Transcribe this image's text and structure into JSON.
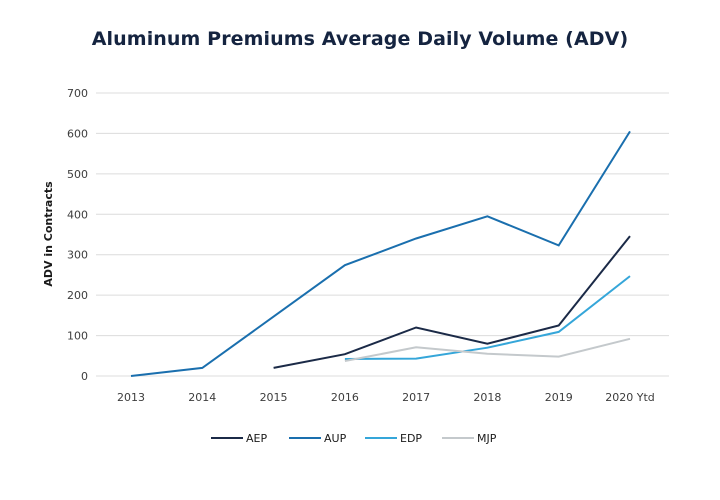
{
  "chart_data": {
    "type": "line",
    "title": "Aluminum Premiums Average Daily Volume (ADV)",
    "xlabel": "",
    "ylabel": "ADV in Contracts",
    "categories": [
      "2013",
      "2014",
      "2015",
      "2016",
      "2017",
      "2018",
      "2019",
      "2020 Ytd"
    ],
    "ylim": [
      0,
      700
    ],
    "yticks": [
      0,
      100,
      200,
      300,
      400,
      500,
      600,
      700
    ],
    "grid": true,
    "legend_position": "bottom-center",
    "series": [
      {
        "name": "AEP",
        "color": "#1b2a47",
        "values": [
          null,
          null,
          20,
          54,
          120,
          80,
          125,
          346
        ]
      },
      {
        "name": "AUP",
        "color": "#1a6fae",
        "values": [
          0,
          20,
          147,
          274,
          340,
          395,
          323,
          605
        ]
      },
      {
        "name": "EDP",
        "color": "#35a6d9",
        "values": [
          null,
          null,
          null,
          42,
          43,
          70,
          109,
          247
        ]
      },
      {
        "name": "MJP",
        "color": "#c4c9cc",
        "values": [
          null,
          null,
          null,
          37,
          71,
          55,
          48,
          92
        ]
      }
    ]
  }
}
